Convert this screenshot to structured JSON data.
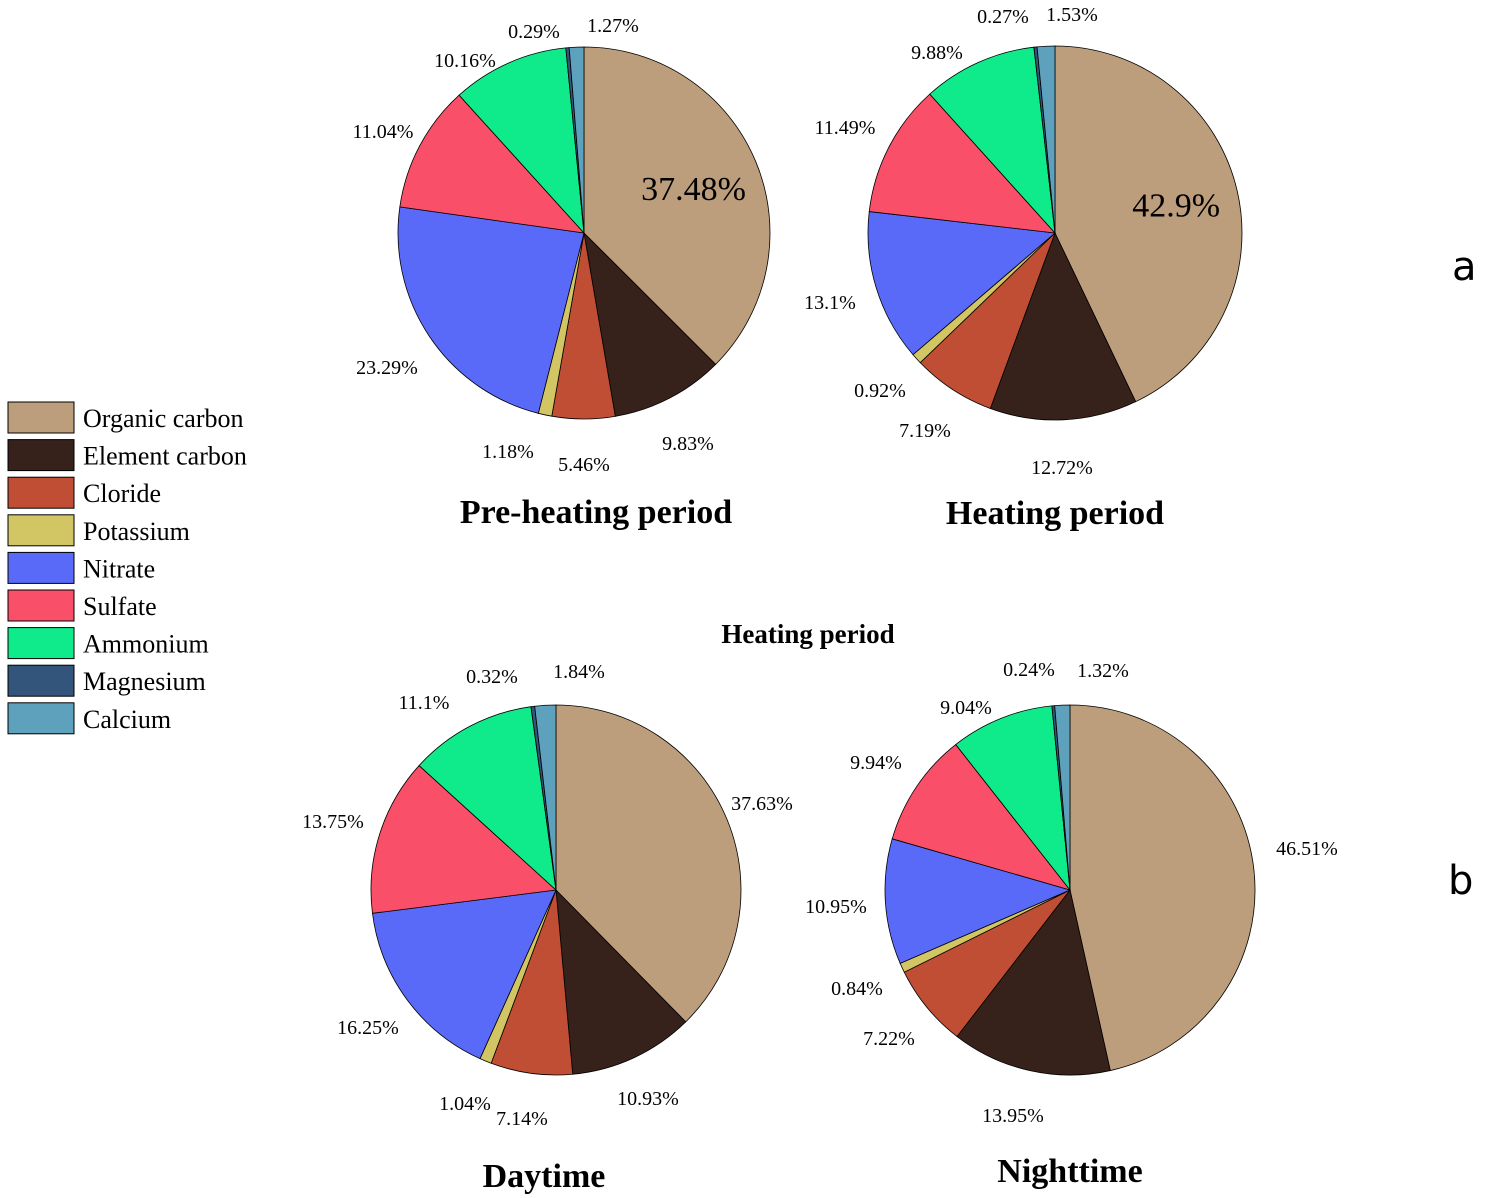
{
  "legend": {
    "items": [
      {
        "label": "Organic carbon",
        "color": "#BD9E7C"
      },
      {
        "label": "Element carbon",
        "color": "#36211B"
      },
      {
        "label": "Cloride",
        "color": "#C04E34"
      },
      {
        "label": "Potassium",
        "color": "#D2C564"
      },
      {
        "label": "Nitrate",
        "color": "#5A6AF8"
      },
      {
        "label": "Sulfate",
        "color": "#FA4F69"
      },
      {
        "label": "Ammonium",
        "color": "#0FEB8A"
      },
      {
        "label": "Magnesium",
        "color": "#34557B"
      },
      {
        "label": "Calcium",
        "color": "#5DA1BD"
      }
    ]
  },
  "panels": {
    "a": "a",
    "b": "b",
    "b_heading": "Heating period"
  },
  "chart_data": [
    {
      "type": "pie",
      "title": "Pre-heating period",
      "categories": [
        "Organic carbon",
        "Element carbon",
        "Cloride",
        "Potassium",
        "Nitrate",
        "Sulfate",
        "Ammonium",
        "Magnesium",
        "Calcium"
      ],
      "values": [
        37.48,
        9.83,
        5.46,
        1.18,
        23.29,
        11.04,
        10.16,
        0.29,
        1.27
      ],
      "labels": [
        "37.48%",
        "9.83%",
        "5.46%",
        "1.18%",
        "23.29%",
        "11.04%",
        "10.16%",
        "0.29%",
        "1.27%"
      ]
    },
    {
      "type": "pie",
      "title": "Heating period",
      "categories": [
        "Organic carbon",
        "Element carbon",
        "Cloride",
        "Potassium",
        "Nitrate",
        "Sulfate",
        "Ammonium",
        "Magnesium",
        "Calcium"
      ],
      "values": [
        42.9,
        12.72,
        7.19,
        0.92,
        13.1,
        11.49,
        9.88,
        0.27,
        1.53
      ],
      "labels": [
        "42.9%",
        "12.72%",
        "7.19%",
        "0.92%",
        "13.1%",
        "11.49%",
        "9.88%",
        "0.27%",
        "1.53%"
      ]
    },
    {
      "type": "pie",
      "title": "Daytime",
      "categories": [
        "Organic carbon",
        "Element carbon",
        "Cloride",
        "Potassium",
        "Nitrate",
        "Sulfate",
        "Ammonium",
        "Magnesium",
        "Calcium"
      ],
      "values": [
        37.63,
        10.93,
        7.14,
        1.04,
        16.25,
        13.75,
        11.1,
        0.32,
        1.84
      ],
      "labels": [
        "37.63%",
        "10.93%",
        "7.14%",
        "1.04%",
        "16.25%",
        "13.75%",
        "11.1%",
        "0.32%",
        "1.84%"
      ]
    },
    {
      "type": "pie",
      "title": "Nighttime",
      "categories": [
        "Organic carbon",
        "Element carbon",
        "Cloride",
        "Potassium",
        "Nitrate",
        "Sulfate",
        "Ammonium",
        "Magnesium",
        "Calcium"
      ],
      "values": [
        46.51,
        13.95,
        7.22,
        0.84,
        10.95,
        9.94,
        9.04,
        0.24,
        1.32
      ],
      "labels": [
        "46.51%",
        "13.95%",
        "7.22%",
        "0.84%",
        "10.95%",
        "9.94%",
        "9.04%",
        "0.24%",
        "1.32%"
      ]
    }
  ]
}
